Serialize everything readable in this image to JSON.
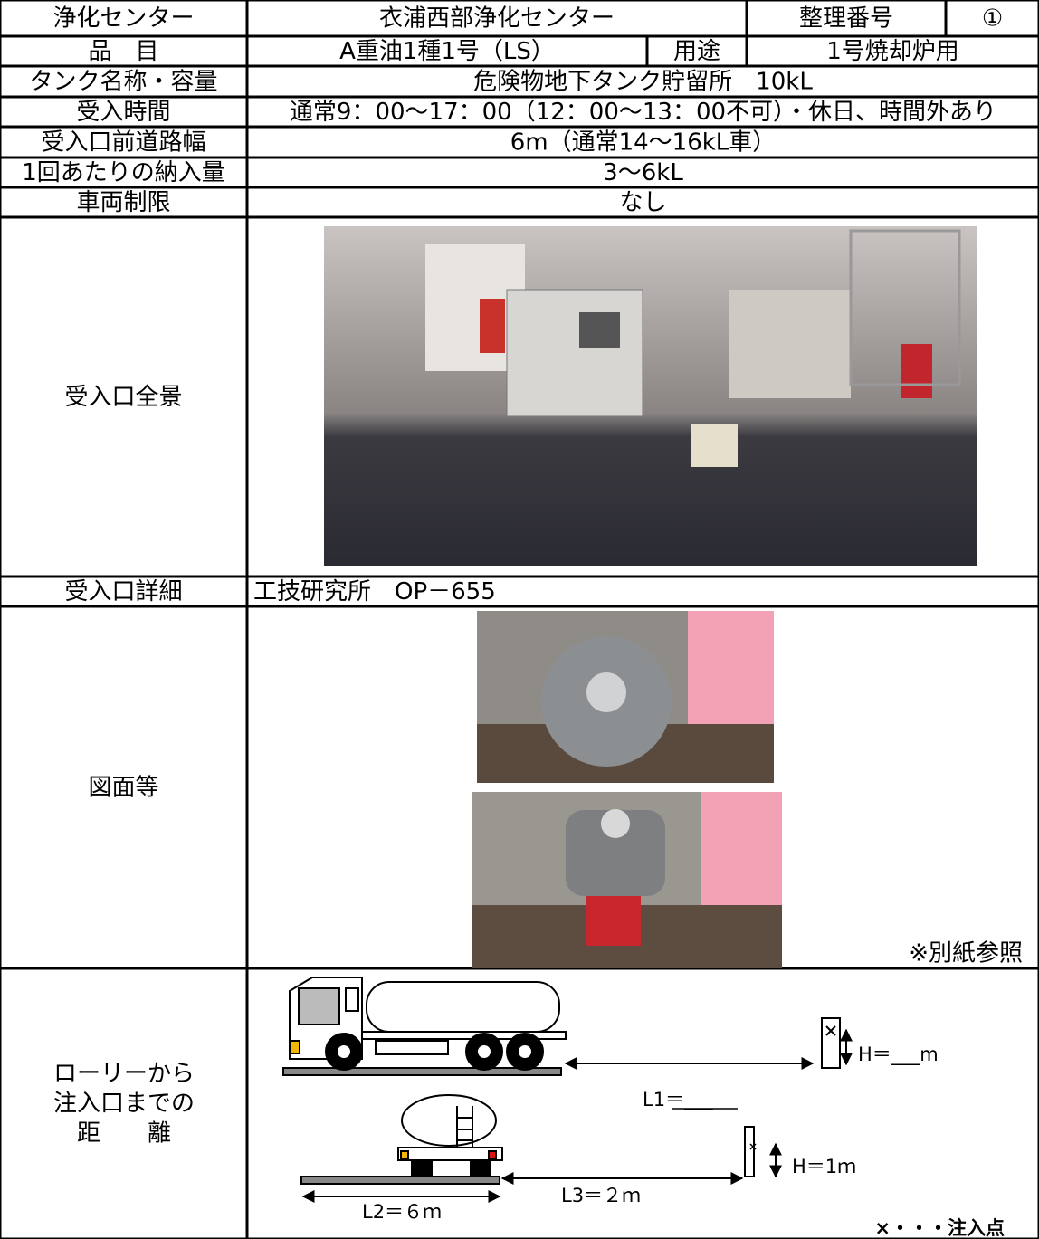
{
  "table": {
    "rows": [
      [
        "浄化センター",
        "衣浦西部浄化センター",
        "整理番号",
        "①"
      ],
      [
        "品　目",
        "A重油1種1号（LS）",
        "用途",
        "1号焼却炉用"
      ],
      [
        "タンク名称・容量",
        "危険物地下タンク貯留所　10kL"
      ],
      [
        "受入時間",
        "通常9：00～17：00（12：00～13：00不可）・休日、時間外あり"
      ],
      [
        "受入口前道路幅",
        "6m（通常14～16kL車）"
      ],
      [
        "1回あたりの納入量",
        "3～6kL"
      ],
      [
        "車両制限",
        "なし"
      ],
      [
        "受入口全景"
      ],
      [
        "受入口詳細",
        "工技研究所　OP－655"
      ],
      [
        "図面等",
        "※別紙参照"
      ]
    ]
  },
  "distance": {
    "label": [
      "ローリーから",
      "注入口までの",
      "距　　離"
    ],
    "h_side": "H＝___m",
    "l1": "L1＝___",
    "h_rear": "H＝1ｍ",
    "l2": "L2＝６ｍ",
    "l3": "L3＝２ｍ",
    "legend": "×・・・注入点"
  }
}
